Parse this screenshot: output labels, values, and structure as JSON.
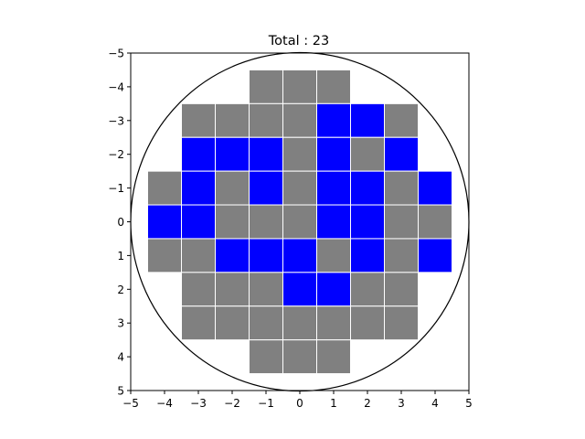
{
  "chart_data": {
    "type": "heatmap",
    "title": "Total : 23",
    "xlim": [
      -5,
      5
    ],
    "ylim": [
      -5,
      5
    ],
    "y_inverted": true,
    "grid": false,
    "colors": {
      "selected": "#0000ff",
      "unselected": "#808080",
      "cell_edge": "#ffffff",
      "circle": "#000000"
    },
    "circle": {
      "cx": 0,
      "cy": 0,
      "r": 5
    },
    "xticks": [
      "−5",
      "−4",
      "−3",
      "−2",
      "−1",
      "0",
      "1",
      "2",
      "3",
      "4",
      "5"
    ],
    "yticks": [
      "−5",
      "−4",
      "−3",
      "−2",
      "−1",
      "0",
      "1",
      "2",
      "3",
      "4",
      "5"
    ],
    "rows": [
      {
        "y": -4,
        "cells": [
          [
            -1,
            0
          ],
          [
            0,
            0
          ],
          [
            1,
            0
          ]
        ]
      },
      {
        "y": -3,
        "cells": [
          [
            -3,
            0
          ],
          [
            -2,
            0
          ],
          [
            -1,
            0
          ],
          [
            0,
            0
          ],
          [
            1,
            1
          ],
          [
            2,
            1
          ],
          [
            3,
            0
          ]
        ]
      },
      {
        "y": -2,
        "cells": [
          [
            -3,
            1
          ],
          [
            -2,
            1
          ],
          [
            -1,
            1
          ],
          [
            0,
            0
          ],
          [
            1,
            1
          ],
          [
            2,
            0
          ],
          [
            3,
            1
          ]
        ]
      },
      {
        "y": -1,
        "cells": [
          [
            -4,
            0
          ],
          [
            -3,
            1
          ],
          [
            -2,
            0
          ],
          [
            -1,
            1
          ],
          [
            0,
            0
          ],
          [
            1,
            1
          ],
          [
            2,
            1
          ],
          [
            3,
            0
          ],
          [
            4,
            1
          ]
        ]
      },
      {
        "y": 0,
        "cells": [
          [
            -4,
            1
          ],
          [
            -3,
            1
          ],
          [
            -2,
            0
          ],
          [
            -1,
            0
          ],
          [
            0,
            0
          ],
          [
            1,
            1
          ],
          [
            2,
            1
          ],
          [
            3,
            0
          ],
          [
            4,
            0
          ]
        ]
      },
      {
        "y": 1,
        "cells": [
          [
            -4,
            0
          ],
          [
            -3,
            0
          ],
          [
            -2,
            1
          ],
          [
            -1,
            1
          ],
          [
            0,
            1
          ],
          [
            1,
            0
          ],
          [
            2,
            1
          ],
          [
            3,
            0
          ],
          [
            4,
            1
          ]
        ]
      },
      {
        "y": 2,
        "cells": [
          [
            -3,
            0
          ],
          [
            -2,
            0
          ],
          [
            -1,
            0
          ],
          [
            0,
            1
          ],
          [
            1,
            1
          ],
          [
            2,
            0
          ],
          [
            3,
            0
          ]
        ]
      },
      {
        "y": 3,
        "cells": [
          [
            -3,
            0
          ],
          [
            -2,
            0
          ],
          [
            -1,
            0
          ],
          [
            0,
            0
          ],
          [
            1,
            0
          ],
          [
            2,
            0
          ],
          [
            3,
            0
          ]
        ]
      },
      {
        "y": 4,
        "cells": [
          [
            -1,
            0
          ],
          [
            0,
            0
          ],
          [
            1,
            0
          ]
        ]
      }
    ]
  }
}
